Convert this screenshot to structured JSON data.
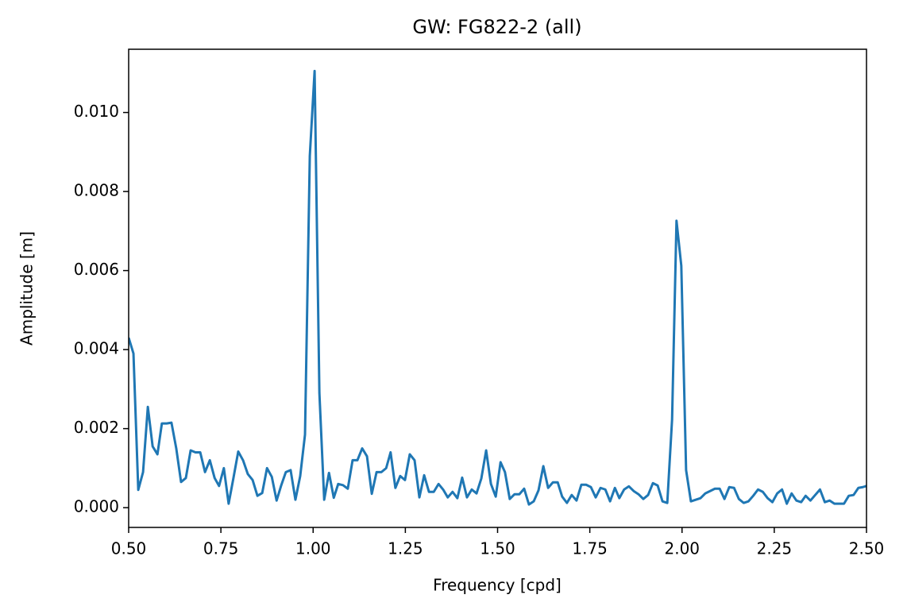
{
  "chart_data": {
    "type": "line",
    "title": "GW: FG822-2 (all)",
    "x_label": "Frequency [cpd]",
    "y_label": "Amplitude [m]",
    "color": "#1f77b4",
    "grid": false,
    "x": [
      0.5,
      0.513,
      0.526,
      0.539,
      0.552,
      0.565,
      0.578,
      0.59,
      0.603,
      0.616,
      0.629,
      0.642,
      0.655,
      0.668,
      0.681,
      0.694,
      0.707,
      0.72,
      0.733,
      0.745,
      0.758,
      0.771,
      0.784,
      0.797,
      0.81,
      0.823,
      0.836,
      0.849,
      0.862,
      0.875,
      0.888,
      0.901,
      0.913,
      0.926,
      0.939,
      0.952,
      0.965,
      0.978,
      0.991,
      1.004,
      1.017,
      1.03,
      1.043,
      1.056,
      1.068,
      1.081,
      1.094,
      1.107,
      1.12,
      1.133,
      1.146,
      1.159,
      1.172,
      1.185,
      1.198,
      1.21,
      1.223,
      1.236,
      1.249,
      1.262,
      1.275,
      1.288,
      1.301,
      1.314,
      1.327,
      1.34,
      1.353,
      1.365,
      1.378,
      1.391,
      1.404,
      1.417,
      1.43,
      1.443,
      1.456,
      1.469,
      1.482,
      1.495,
      1.508,
      1.52,
      1.533,
      1.546,
      1.559,
      1.572,
      1.585,
      1.598,
      1.611,
      1.624,
      1.637,
      1.65,
      1.663,
      1.675,
      1.688,
      1.701,
      1.714,
      1.727,
      1.74,
      1.753,
      1.766,
      1.779,
      1.792,
      1.805,
      1.818,
      1.83,
      1.843,
      1.856,
      1.869,
      1.882,
      1.895,
      1.908,
      1.921,
      1.934,
      1.947,
      1.96,
      1.973,
      1.985,
      1.998,
      2.011,
      2.024,
      2.037,
      2.05,
      2.063,
      2.076,
      2.089,
      2.102,
      2.115,
      2.128,
      2.141,
      2.154,
      2.167,
      2.18,
      2.193,
      2.206,
      2.219,
      2.232,
      2.245,
      2.258,
      2.271,
      2.284,
      2.297,
      2.31,
      2.323,
      2.335,
      2.348,
      2.361,
      2.374,
      2.387,
      2.4,
      2.413,
      2.426,
      2.439,
      2.452,
      2.465,
      2.478,
      2.49,
      2.5
    ],
    "values": [
      0.0043,
      0.0039,
      0.00045,
      0.0009,
      0.00255,
      0.00155,
      0.00135,
      0.00213,
      0.00213,
      0.00215,
      0.0015,
      0.00065,
      0.00075,
      0.00145,
      0.0014,
      0.0014,
      0.0009,
      0.0012,
      0.00075,
      0.00055,
      0.001,
      0.0001,
      0.00075,
      0.00142,
      0.0012,
      0.00085,
      0.0007,
      0.0003,
      0.00037,
      0.001,
      0.00078,
      0.00018,
      0.00055,
      0.0009,
      0.00095,
      0.0002,
      0.0008,
      0.00185,
      0.0089,
      0.01105,
      0.0029,
      0.0002,
      0.00088,
      0.00025,
      0.0006,
      0.00057,
      0.00048,
      0.0012,
      0.0012,
      0.0015,
      0.0013,
      0.00035,
      0.0009,
      0.0009,
      0.001,
      0.0014,
      0.0005,
      0.0008,
      0.0007,
      0.00135,
      0.0012,
      0.00026,
      0.00082,
      0.0004,
      0.0004,
      0.0006,
      0.00045,
      0.00026,
      0.0004,
      0.00024,
      0.00076,
      0.00026,
      0.00046,
      0.00036,
      0.00074,
      0.00145,
      0.0006,
      0.00028,
      0.00115,
      0.0009,
      0.00022,
      0.00034,
      0.00034,
      0.00048,
      8e-05,
      0.00016,
      0.00044,
      0.00105,
      0.0005,
      0.00064,
      0.00064,
      0.00028,
      0.00012,
      0.00032,
      0.00018,
      0.00058,
      0.00058,
      0.00052,
      0.00026,
      0.0005,
      0.00046,
      0.00016,
      0.0005,
      0.00024,
      0.00046,
      0.00054,
      0.00042,
      0.00034,
      0.00022,
      0.00032,
      0.00062,
      0.00056,
      0.00016,
      0.00012,
      0.00223,
      0.00726,
      0.00612,
      0.00095,
      0.00016,
      0.0002,
      0.00024,
      0.00036,
      0.00042,
      0.00048,
      0.00048,
      0.00022,
      0.00052,
      0.0005,
      0.00022,
      0.00012,
      0.00016,
      0.0003,
      0.00046,
      0.0004,
      0.00024,
      0.00014,
      0.00036,
      0.00046,
      0.0001,
      0.00036,
      0.00018,
      0.00014,
      0.0003,
      0.00018,
      0.00032,
      0.00046,
      0.00014,
      0.00018,
      0.0001,
      0.0001,
      0.0001,
      0.0003,
      0.00032,
      0.0005,
      0.00052,
      0.00055
    ],
    "xlim": [
      0.5,
      2.5
    ],
    "xticks": [
      {
        "value": 0.5,
        "label": "0.50"
      },
      {
        "value": 0.75,
        "label": "0.75"
      },
      {
        "value": 1.0,
        "label": "1.00"
      },
      {
        "value": 1.25,
        "label": "1.25"
      },
      {
        "value": 1.5,
        "label": "1.50"
      },
      {
        "value": 1.75,
        "label": "1.75"
      },
      {
        "value": 2.0,
        "label": "2.00"
      },
      {
        "value": 2.25,
        "label": "2.25"
      },
      {
        "value": 2.5,
        "label": "2.50"
      }
    ],
    "ylim": [
      -0.0005,
      0.0116
    ],
    "yticks": [
      {
        "value": 0,
        "label": "0.000"
      },
      {
        "value": 0.002,
        "label": "0.002"
      },
      {
        "value": 0.004,
        "label": "0.004"
      },
      {
        "value": 0.006,
        "label": "0.006"
      },
      {
        "value": 0.008,
        "label": "0.008"
      },
      {
        "value": 0.01,
        "label": "0.010"
      }
    ]
  }
}
